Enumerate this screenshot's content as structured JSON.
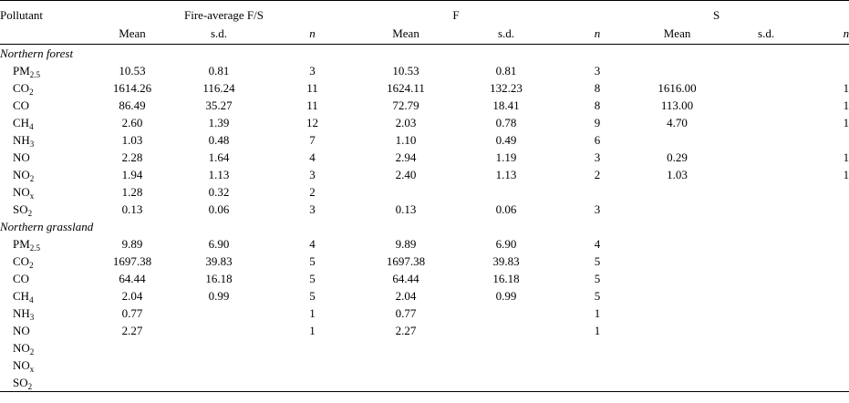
{
  "header": {
    "pollutant": "Pollutant",
    "groups": [
      "Fire-average F/S",
      "F",
      "S"
    ],
    "sub_headers": [
      "Mean",
      "s.d.",
      "n",
      "Mean",
      "s.d.",
      "n",
      "Mean",
      "s.d.",
      "n"
    ]
  },
  "sections": [
    {
      "title": "Northern forest",
      "rows": [
        {
          "base": "PM",
          "sub": "2.5",
          "cells": [
            "10.53",
            "0.81",
            "3",
            "10.53",
            "0.81",
            "3",
            "",
            "",
            ""
          ]
        },
        {
          "base": "CO",
          "sub": "2",
          "cells": [
            "1614.26",
            "116.24",
            "11",
            "1624.11",
            "132.23",
            "8",
            "1616.00",
            "",
            "1"
          ]
        },
        {
          "base": "CO",
          "sub": "",
          "cells": [
            "86.49",
            "35.27",
            "11",
            "72.79",
            "18.41",
            "8",
            "113.00",
            "",
            "1"
          ]
        },
        {
          "base": "CH",
          "sub": "4",
          "cells": [
            "2.60",
            "1.39",
            "12",
            "2.03",
            "0.78",
            "9",
            "4.70",
            "",
            "1"
          ]
        },
        {
          "base": "NH",
          "sub": "3",
          "cells": [
            "1.03",
            "0.48",
            "7",
            "1.10",
            "0.49",
            "6",
            "",
            "",
            ""
          ]
        },
        {
          "base": "NO",
          "sub": "",
          "cells": [
            "2.28",
            "1.64",
            "4",
            "2.94",
            "1.19",
            "3",
            "0.29",
            "",
            "1"
          ]
        },
        {
          "base": "NO",
          "sub": "2",
          "cells": [
            "1.94",
            "1.13",
            "3",
            "2.40",
            "1.13",
            "2",
            "1.03",
            "",
            "1"
          ]
        },
        {
          "base": "NO",
          "sub": "x",
          "cells": [
            "1.28",
            "0.32",
            "2",
            "",
            "",
            "",
            "",
            "",
            ""
          ]
        },
        {
          "base": "SO",
          "sub": "2",
          "cells": [
            "0.13",
            "0.06",
            "3",
            "0.13",
            "0.06",
            "3",
            "",
            "",
            ""
          ]
        }
      ]
    },
    {
      "title": "Northern grassland",
      "rows": [
        {
          "base": "PM",
          "sub": "2.5",
          "cells": [
            "9.89",
            "6.90",
            "4",
            "9.89",
            "6.90",
            "4",
            "",
            "",
            ""
          ]
        },
        {
          "base": "CO",
          "sub": "2",
          "cells": [
            "1697.38",
            "39.83",
            "5",
            "1697.38",
            "39.83",
            "5",
            "",
            "",
            ""
          ]
        },
        {
          "base": "CO",
          "sub": "",
          "cells": [
            "64.44",
            "16.18",
            "5",
            "64.44",
            "16.18",
            "5",
            "",
            "",
            ""
          ]
        },
        {
          "base": "CH",
          "sub": "4",
          "cells": [
            "2.04",
            "0.99",
            "5",
            "2.04",
            "0.99",
            "5",
            "",
            "",
            ""
          ]
        },
        {
          "base": "NH",
          "sub": "3",
          "cells": [
            "0.77",
            "",
            "1",
            "0.77",
            "",
            "1",
            "",
            "",
            ""
          ]
        },
        {
          "base": "NO",
          "sub": "",
          "cells": [
            "2.27",
            "",
            "1",
            "2.27",
            "",
            "1",
            "",
            "",
            ""
          ]
        },
        {
          "base": "NO",
          "sub": "2",
          "cells": [
            "",
            "",
            "",
            "",
            "",
            "",
            "",
            "",
            ""
          ]
        },
        {
          "base": "NO",
          "sub": "x",
          "cells": [
            "",
            "",
            "",
            "",
            "",
            "",
            "",
            "",
            ""
          ]
        },
        {
          "base": "SO",
          "sub": "2",
          "cells": [
            "",
            "",
            "",
            "",
            "",
            "",
            "",
            "",
            ""
          ]
        }
      ]
    }
  ]
}
